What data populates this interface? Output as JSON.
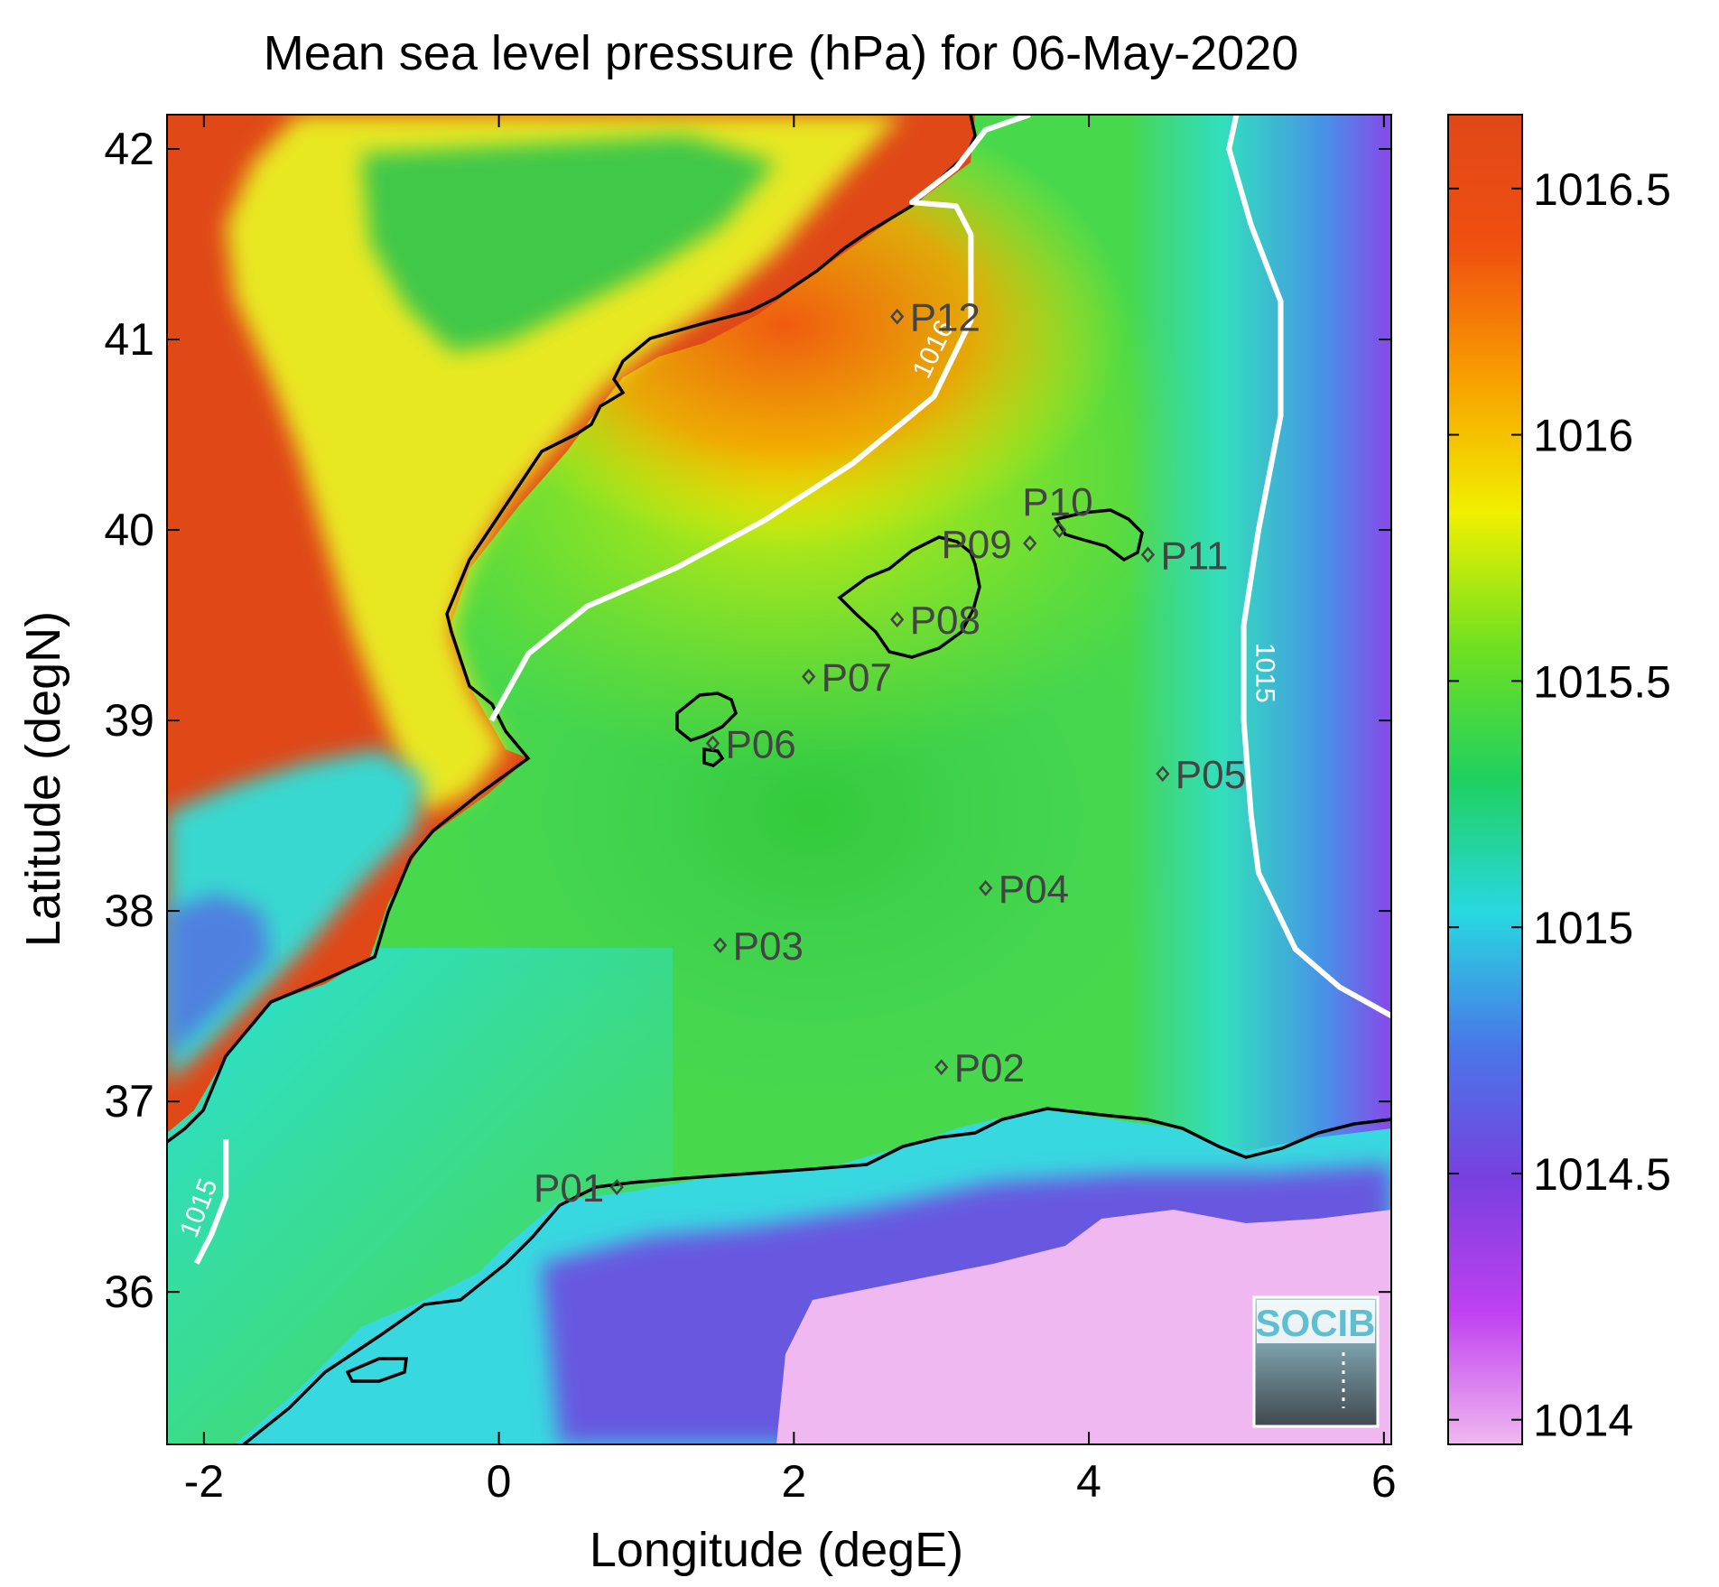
{
  "chart_data": {
    "type": "heatmap",
    "title": "Mean sea level pressure (hPa) for 06-May-2020",
    "xlabel": "Longitude (degE)",
    "ylabel": "Latitude (degN)",
    "xlim": [
      -2.25,
      6.05
    ],
    "ylim": [
      35.2,
      42.18
    ],
    "x_ticks": [
      -2,
      0,
      2,
      4,
      6
    ],
    "y_ticks": [
      36,
      37,
      38,
      39,
      40,
      41,
      42
    ],
    "colorbar": {
      "range": [
        1013.95,
        1016.65
      ],
      "ticks": [
        "1014",
        "1014.5",
        "1015",
        "1015.5",
        "1016",
        "1016.5"
      ],
      "tick_values": [
        1014,
        1014.5,
        1015,
        1015.5,
        1016,
        1016.5
      ],
      "colors": [
        "#f0b8f0",
        "#c040f0",
        "#7840e0",
        "#4878e8",
        "#28d8e0",
        "#20d060",
        "#70e020",
        "#f0f000",
        "#f8a000",
        "#f05010",
        "#e04818"
      ]
    },
    "contours": [
      {
        "level": "1016",
        "label": "1016",
        "points": [
          [
            -0.05,
            39.0
          ],
          [
            0.2,
            39.35
          ],
          [
            0.6,
            39.6
          ],
          [
            1.2,
            39.8
          ],
          [
            1.8,
            40.05
          ],
          [
            2.4,
            40.35
          ],
          [
            2.95,
            40.7
          ],
          [
            3.2,
            41.1
          ],
          [
            3.2,
            41.55
          ],
          [
            3.1,
            41.7
          ],
          [
            2.8,
            41.72
          ],
          [
            3.1,
            41.9
          ],
          [
            3.3,
            42.1
          ],
          [
            3.6,
            42.18
          ]
        ]
      },
      {
        "level": "1015",
        "label": "1015",
        "points": [
          [
            5.0,
            42.18
          ],
          [
            4.95,
            42.0
          ],
          [
            5.1,
            41.6
          ],
          [
            5.3,
            41.2
          ],
          [
            5.3,
            40.6
          ],
          [
            5.15,
            40.0
          ],
          [
            5.05,
            39.5
          ],
          [
            5.05,
            39.0
          ],
          [
            5.1,
            38.5
          ],
          [
            5.15,
            38.2
          ],
          [
            5.4,
            37.8
          ],
          [
            5.7,
            37.6
          ],
          [
            6.05,
            37.45
          ]
        ]
      },
      {
        "level": "1015",
        "label": "1015",
        "points": [
          [
            -1.85,
            36.8
          ],
          [
            -1.85,
            36.5
          ],
          [
            -1.95,
            36.3
          ],
          [
            -2.05,
            36.15
          ]
        ]
      }
    ],
    "stations": [
      {
        "name": "P01",
        "lon": 0.8,
        "lat": 36.55
      },
      {
        "name": "P02",
        "lon": 3.0,
        "lat": 37.18
      },
      {
        "name": "P03",
        "lon": 1.5,
        "lat": 37.82
      },
      {
        "name": "P04",
        "lon": 3.3,
        "lat": 38.12
      },
      {
        "name": "P05",
        "lon": 4.5,
        "lat": 38.72
      },
      {
        "name": "P06",
        "lon": 1.45,
        "lat": 38.88
      },
      {
        "name": "P07",
        "lon": 2.1,
        "lat": 39.23
      },
      {
        "name": "P08",
        "lon": 2.7,
        "lat": 39.53
      },
      {
        "name": "P09",
        "lon": 3.6,
        "lat": 39.93
      },
      {
        "name": "P10",
        "lon": 3.8,
        "lat": 40.0
      },
      {
        "name": "P11",
        "lon": 4.4,
        "lat": 39.87
      },
      {
        "name": "P12",
        "lon": 2.7,
        "lat": 41.12
      }
    ]
  },
  "logo": {
    "text": "SOCIB"
  }
}
